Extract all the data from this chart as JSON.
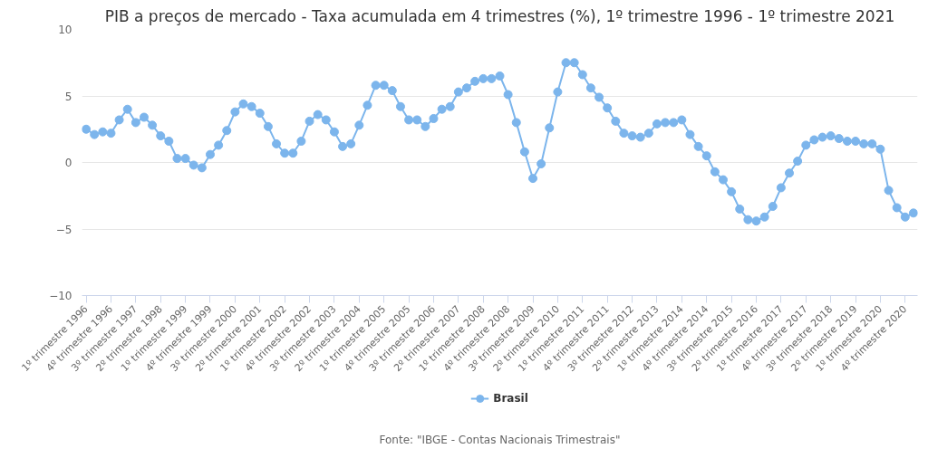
{
  "chart_data": {
    "type": "line",
    "title": "PIB a preços de mercado - Taxa acumulada em 4 trimestres (%), 1º trimestre 1996 - 1º trimestre 2021",
    "categories": [
      "1º trimestre 1996",
      null,
      null,
      "4º trimestre 1996",
      null,
      null,
      "3º trimestre 1997",
      null,
      null,
      "2º trimestre 1998",
      null,
      null,
      "1º trimestre 1999",
      null,
      null,
      "4º trimestre 1999",
      null,
      null,
      "3º trimestre 2000",
      null,
      null,
      "2º trimestre 2001",
      null,
      null,
      "1º trimestre 2002",
      null,
      null,
      "4º trimestre 2002",
      null,
      null,
      "3º trimestre 2003",
      null,
      null,
      "2º trimestre 2004",
      null,
      null,
      "1º trimestre 2005",
      null,
      null,
      "4º trimestre 2005",
      null,
      null,
      "3º trimestre 2006",
      null,
      null,
      "2º trimestre 2007",
      null,
      null,
      "1º trimestre 2008",
      null,
      null,
      "4º trimestre 2008",
      null,
      null,
      "3º trimestre 2009",
      null,
      null,
      "2º trimestre 2010",
      null,
      null,
      "1º trimestre 2011",
      null,
      null,
      "4º trimestre 2011",
      null,
      null,
      "3º trimestre 2012",
      null,
      null,
      "2º trimestre 2013",
      null,
      null,
      "1º trimestre 2014",
      null,
      null,
      "4º trimestre 2014",
      null,
      null,
      "3º trimestre 2015",
      null,
      null,
      "2º trimestre 2016",
      null,
      null,
      "1º trimestre 2017",
      null,
      null,
      "4º trimestre 2017",
      null,
      null,
      "3º trimestre 2018",
      null,
      null,
      "2º trimestre 2019",
      null,
      null,
      "1º trimestre 2020",
      null,
      null,
      "4º trimestre 2020",
      null
    ],
    "series": [
      {
        "name": "Brasil",
        "color": "#7cb5ec",
        "values": [
          2.5,
          2.1,
          2.3,
          2.2,
          3.2,
          4.0,
          3.0,
          3.4,
          2.8,
          2.0,
          1.6,
          0.3,
          0.3,
          -0.2,
          -0.4,
          0.6,
          1.3,
          2.4,
          3.8,
          4.4,
          4.2,
          3.7,
          2.7,
          1.4,
          0.7,
          0.7,
          1.6,
          3.1,
          3.6,
          3.2,
          2.3,
          1.2,
          1.4,
          2.8,
          4.3,
          5.8,
          5.8,
          5.4,
          4.2,
          3.2,
          3.2,
          2.7,
          3.3,
          4.0,
          4.2,
          5.3,
          5.6,
          6.1,
          6.3,
          6.3,
          6.5,
          5.1,
          3.0,
          0.8,
          -1.2,
          -0.1,
          2.6,
          5.3,
          7.5,
          7.5,
          6.6,
          5.6,
          4.9,
          4.1,
          3.1,
          2.2,
          2.0,
          1.9,
          2.2,
          2.9,
          3.0,
          3.0,
          3.2,
          2.1,
          1.2,
          0.5,
          -0.7,
          -1.3,
          -2.2,
          -3.5,
          -4.3,
          -4.4,
          -4.1,
          -3.3,
          -1.9,
          -0.8,
          0.1,
          1.3,
          1.7,
          1.9,
          2.0,
          1.8,
          1.6,
          1.6,
          1.4,
          1.4,
          1.0,
          -2.1,
          -3.4,
          -4.1,
          -3.8
        ]
      }
    ],
    "ylim": [
      -10,
      10
    ],
    "yticks": [
      {
        "value": -10,
        "label": "−10"
      },
      {
        "value": -5,
        "label": "−5"
      },
      0,
      5,
      10
    ],
    "grid": "y",
    "legend": "bottom",
    "marker": "circle",
    "line_style": "solid",
    "annotations": [
      "Fonte: \"IBGE - Contas Nacionais Trimestrais\""
    ]
  }
}
